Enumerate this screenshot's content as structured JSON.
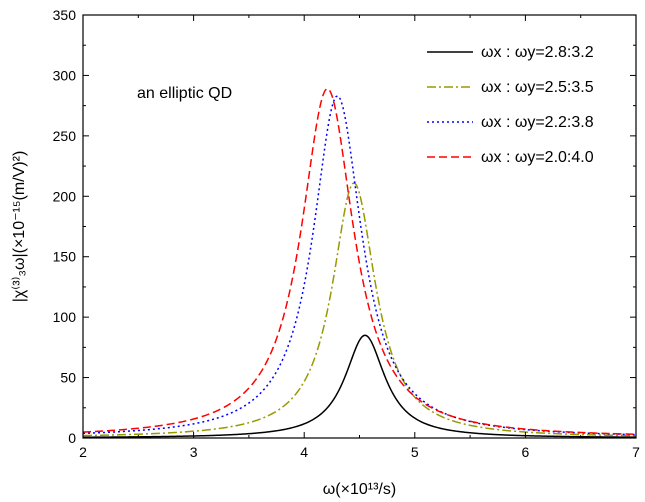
{
  "chart_data": {
    "type": "line",
    "xlim": [
      2,
      7
    ],
    "ylim": [
      0,
      350
    ],
    "x_ticks": [
      "2",
      "3",
      "4",
      "5",
      "6",
      "7"
    ],
    "y_ticks": [
      "0",
      "50",
      "100",
      "150",
      "200",
      "250",
      "300",
      "350"
    ],
    "xlabel": "ω(×10¹³/s)",
    "ylabel": "|χ⁽³⁾₃ω|(×10⁻¹⁵(m/V)²)",
    "annotation": "an elliptic QD",
    "grid": false,
    "legend_position": "top-right",
    "series": [
      {
        "name": "ωx : ωy=2.8:3.2",
        "color": "#000000",
        "dash": "solid",
        "peak_x": 4.55,
        "peak_y": 85,
        "half_width": 0.22
      },
      {
        "name": "ωx : ωy=2.5:3.5",
        "color": "#999900",
        "dash": "dashdot",
        "peak_x": 4.45,
        "peak_y": 211,
        "half_width": 0.24
      },
      {
        "name": "ωx : ωy=2.2:3.8",
        "color": "#0000ff",
        "dash": "dotted",
        "peak_x": 4.3,
        "peak_y": 283,
        "half_width": 0.27
      },
      {
        "name": "ωx : ωy=2.0:4.0",
        "color": "#ff0000",
        "dash": "dashed",
        "peak_x": 4.21,
        "peak_y": 289,
        "half_width": 0.29
      }
    ]
  }
}
